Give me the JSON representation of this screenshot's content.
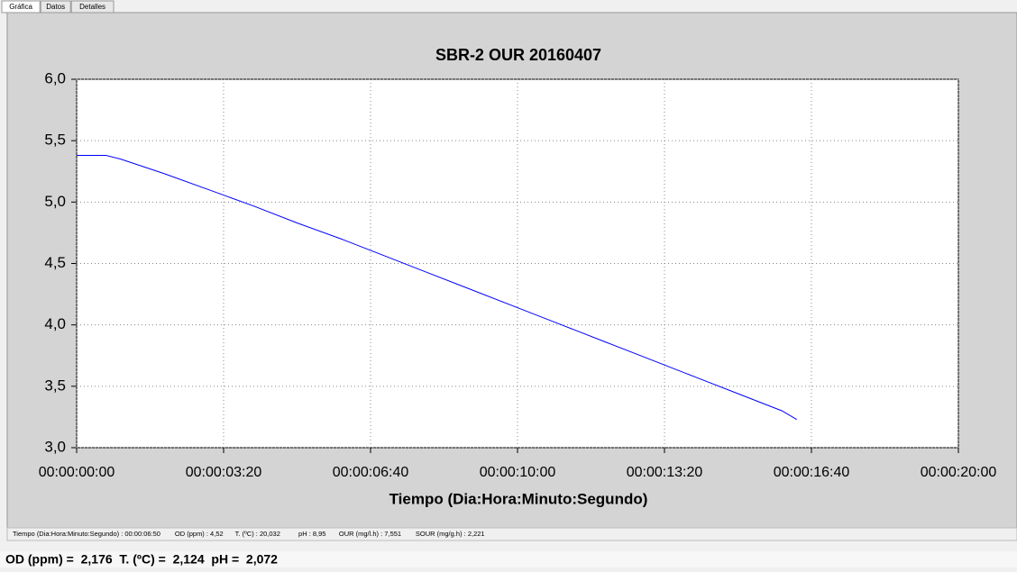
{
  "tabs": [
    "Gráfica",
    "Datos",
    "Detalles"
  ],
  "chart_data": {
    "type": "line",
    "title": "SBR-2 OUR 20160407",
    "x_label": "Tiempo (Dia:Hora:Minuto:Segundo)",
    "x": [
      0,
      40,
      60,
      120,
      180,
      240,
      300,
      360,
      420,
      480,
      540,
      600,
      660,
      720,
      780,
      840,
      900,
      960,
      980
    ],
    "series": [
      {
        "color": "#0000ff",
        "values": [
          5.38,
          5.38,
          5.35,
          5.23,
          5.1,
          4.97,
          4.83,
          4.7,
          4.56,
          4.42,
          4.28,
          4.14,
          4.0,
          3.86,
          3.72,
          3.58,
          3.44,
          3.3,
          3.23
        ]
      }
    ],
    "xlim": [
      0,
      1200
    ],
    "xticks": [
      {
        "value": 0,
        "label": "00:00:00:00"
      },
      {
        "value": 200,
        "label": "00:00:03:20"
      },
      {
        "value": 400,
        "label": "00:00:06:40"
      },
      {
        "value": 600,
        "label": "00:00:10:00"
      },
      {
        "value": 800,
        "label": "00:00:13:20"
      },
      {
        "value": 1000,
        "label": "00:00:16:40"
      },
      {
        "value": 1200,
        "label": "00:00:20:00"
      }
    ],
    "ylim": [
      3,
      6
    ],
    "yticks": [
      {
        "value": 3,
        "label": "3,0"
      },
      {
        "value": 3.5,
        "label": "3,5"
      },
      {
        "value": 4,
        "label": "4,0"
      },
      {
        "value": 4.5,
        "label": "4,5"
      },
      {
        "value": 5,
        "label": "5,0"
      },
      {
        "value": 5.5,
        "label": "5,5"
      },
      {
        "value": 6,
        "label": "6,0"
      }
    ],
    "grid": true
  },
  "status_bar": [
    "Tiempo (Dia:Hora:Minuto:Segundo) : 00:00:06:50",
    "OD (ppm) : 4,52",
    "T. (ºC) : 20,032",
    "pH : 8,95",
    "OUR (mg/l.h) : 7,551",
    "SOUR (mg/g.h) : 2,221"
  ],
  "readout": "OD (ppm) =  2,176  T. (ºC) =  2,124  pH =  2,072"
}
